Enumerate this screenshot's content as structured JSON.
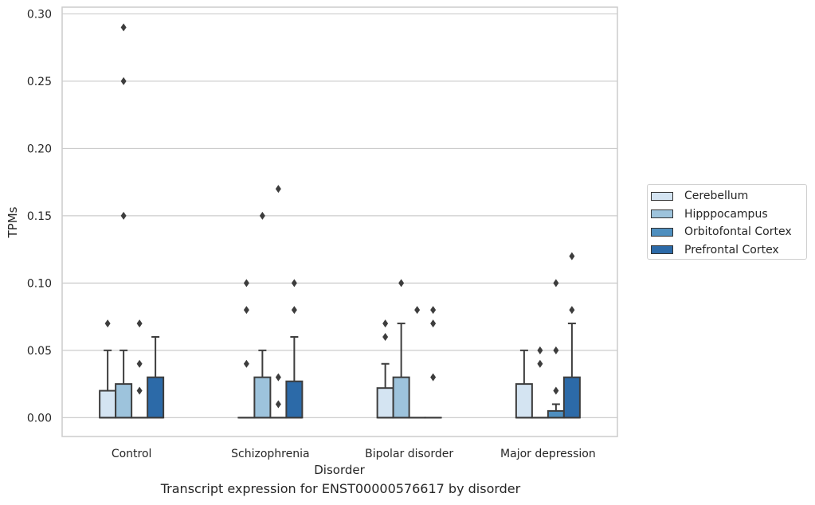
{
  "chart_data": {
    "type": "box",
    "ylabel": "TPMs",
    "xlabel": "Disorder",
    "ylim": [
      -0.014,
      0.305
    ],
    "yticks": [
      "0.00",
      "0.05",
      "0.10",
      "0.15",
      "0.20",
      "0.25",
      "0.30"
    ],
    "categories": [
      "Control",
      "Schizophrenia",
      "Bipolar disorder",
      "Major depression"
    ],
    "grid": "horizontal",
    "legend_position": "right",
    "series": [
      {
        "name": "Cerebellum",
        "color": "#d4e4f2",
        "boxes": [
          {
            "q1": 0,
            "median": 0,
            "q3": 0.02,
            "whisker_low": 0,
            "whisker_high": 0.05,
            "outliers": [
              0.07
            ]
          },
          {
            "q1": 0,
            "median": 0,
            "q3": 0,
            "whisker_low": 0,
            "whisker_high": 0,
            "outliers": [
              0.04,
              0.08,
              0.1
            ]
          },
          {
            "q1": 0,
            "median": 0,
            "q3": 0.022,
            "whisker_low": 0,
            "whisker_high": 0.04,
            "outliers": [
              0.06,
              0.07
            ]
          },
          {
            "q1": 0,
            "median": 0,
            "q3": 0.025,
            "whisker_low": 0,
            "whisker_high": 0.05,
            "outliers": []
          }
        ]
      },
      {
        "name": "Hipppocampus",
        "color": "#9dc3dc",
        "boxes": [
          {
            "q1": 0,
            "median": 0,
            "q3": 0.025,
            "whisker_low": 0,
            "whisker_high": 0.05,
            "outliers": [
              0.15,
              0.25,
              0.29
            ]
          },
          {
            "q1": 0,
            "median": 0,
            "q3": 0.03,
            "whisker_low": 0,
            "whisker_high": 0.05,
            "outliers": [
              0.15
            ]
          },
          {
            "q1": 0,
            "median": 0,
            "q3": 0.03,
            "whisker_low": 0,
            "whisker_high": 0.07,
            "outliers": [
              0.1
            ]
          },
          {
            "q1": 0,
            "median": 0,
            "q3": 0,
            "whisker_low": 0,
            "whisker_high": 0,
            "outliers": [
              0.04,
              0.05
            ]
          }
        ]
      },
      {
        "name": "Orbitofontal Cortex",
        "color": "#4f8fbf",
        "boxes": [
          {
            "q1": 0,
            "median": 0,
            "q3": 0,
            "whisker_low": 0,
            "whisker_high": 0,
            "outliers": [
              0.02,
              0.04,
              0.07
            ]
          },
          {
            "q1": 0,
            "median": 0,
            "q3": 0,
            "whisker_low": 0,
            "whisker_high": 0,
            "outliers": [
              0.01,
              0.03,
              0.17
            ]
          },
          {
            "q1": 0,
            "median": 0,
            "q3": 0,
            "whisker_low": 0,
            "whisker_high": 0,
            "outliers": [
              0.08
            ]
          },
          {
            "q1": 0,
            "median": 0,
            "q3": 0.005,
            "whisker_low": 0,
            "whisker_high": 0.01,
            "outliers": [
              0.02,
              0.05,
              0.1
            ]
          }
        ]
      },
      {
        "name": "Prefrontal Cortex",
        "color": "#2c6aa8",
        "boxes": [
          {
            "q1": 0,
            "median": 0,
            "q3": 0.03,
            "whisker_low": 0,
            "whisker_high": 0.06,
            "outliers": []
          },
          {
            "q1": 0,
            "median": 0,
            "q3": 0.027,
            "whisker_low": 0,
            "whisker_high": 0.06,
            "outliers": [
              0.08,
              0.1
            ]
          },
          {
            "q1": 0,
            "median": 0,
            "q3": 0,
            "whisker_low": 0,
            "whisker_high": 0,
            "outliers": [
              0.03,
              0.07,
              0.08
            ]
          },
          {
            "q1": 0,
            "median": 0,
            "q3": 0.03,
            "whisker_low": 0,
            "whisker_high": 0.07,
            "outliers": [
              0.08,
              0.12
            ]
          }
        ]
      }
    ]
  },
  "caption": "Transcript expression for ENST00000576617 by disorder"
}
